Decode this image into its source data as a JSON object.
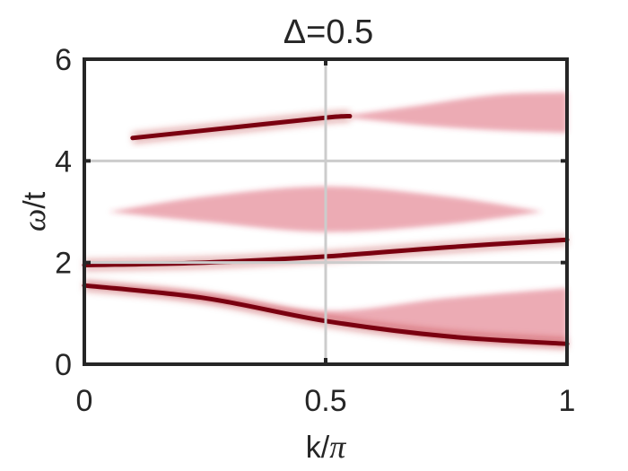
{
  "chart_data": {
    "type": "heatmap",
    "title": "Δ=0.5",
    "xlabel": {
      "main": "k/",
      "symbol": "π"
    },
    "ylabel": {
      "symbol": "ω",
      "main": "/t"
    },
    "xlim": [
      0,
      1
    ],
    "ylim": [
      0,
      6
    ],
    "xticks": [
      {
        "value": 0,
        "label": "0"
      },
      {
        "value": 0.5,
        "label": "0.5"
      },
      {
        "value": 1,
        "label": "1"
      }
    ],
    "yticks": [
      {
        "value": 0,
        "label": "0"
      },
      {
        "value": 2,
        "label": "2"
      },
      {
        "value": 4,
        "label": "4"
      },
      {
        "value": 6,
        "label": "6"
      }
    ],
    "grid": true,
    "colormap": "white-to-dark-red",
    "colors": {
      "low": "#ffffff",
      "high": "#7a0010",
      "axis": "#262626",
      "grid": "#cccccc"
    },
    "sharp_bands": [
      {
        "name": "lower",
        "k": [
          0,
          0.25,
          0.5,
          0.75,
          1.0
        ],
        "omega": [
          1.55,
          1.3,
          0.85,
          0.55,
          0.4
        ]
      },
      {
        "name": "middle",
        "k": [
          0,
          0.25,
          0.5,
          0.75,
          1.0
        ],
        "omega": [
          1.95,
          2.0,
          2.12,
          2.3,
          2.45
        ]
      },
      {
        "name": "upper",
        "k": [
          0.1,
          0.3,
          0.5,
          0.55
        ],
        "omega": [
          4.45,
          4.65,
          4.85,
          4.88
        ]
      }
    ],
    "continua": [
      {
        "name": "low-continuum",
        "k": [
          0,
          0.25,
          0.5,
          0.75,
          1.0
        ],
        "min": [
          1.55,
          1.25,
          0.85,
          0.5,
          0.35
        ],
        "max": [
          1.6,
          1.4,
          1.05,
          1.3,
          1.5
        ]
      },
      {
        "name": "mid-continuum",
        "k": [
          0.05,
          0.25,
          0.5,
          0.75,
          0.95
        ],
        "min": [
          3.0,
          2.8,
          2.6,
          2.75,
          3.0
        ],
        "max": [
          3.0,
          3.3,
          3.5,
          3.3,
          3.0
        ]
      },
      {
        "name": "high-continuum",
        "k": [
          0.55,
          0.7,
          0.85,
          1.0
        ],
        "min": [
          4.85,
          4.7,
          4.6,
          4.55
        ],
        "max": [
          4.9,
          5.1,
          5.3,
          5.35
        ]
      }
    ]
  }
}
